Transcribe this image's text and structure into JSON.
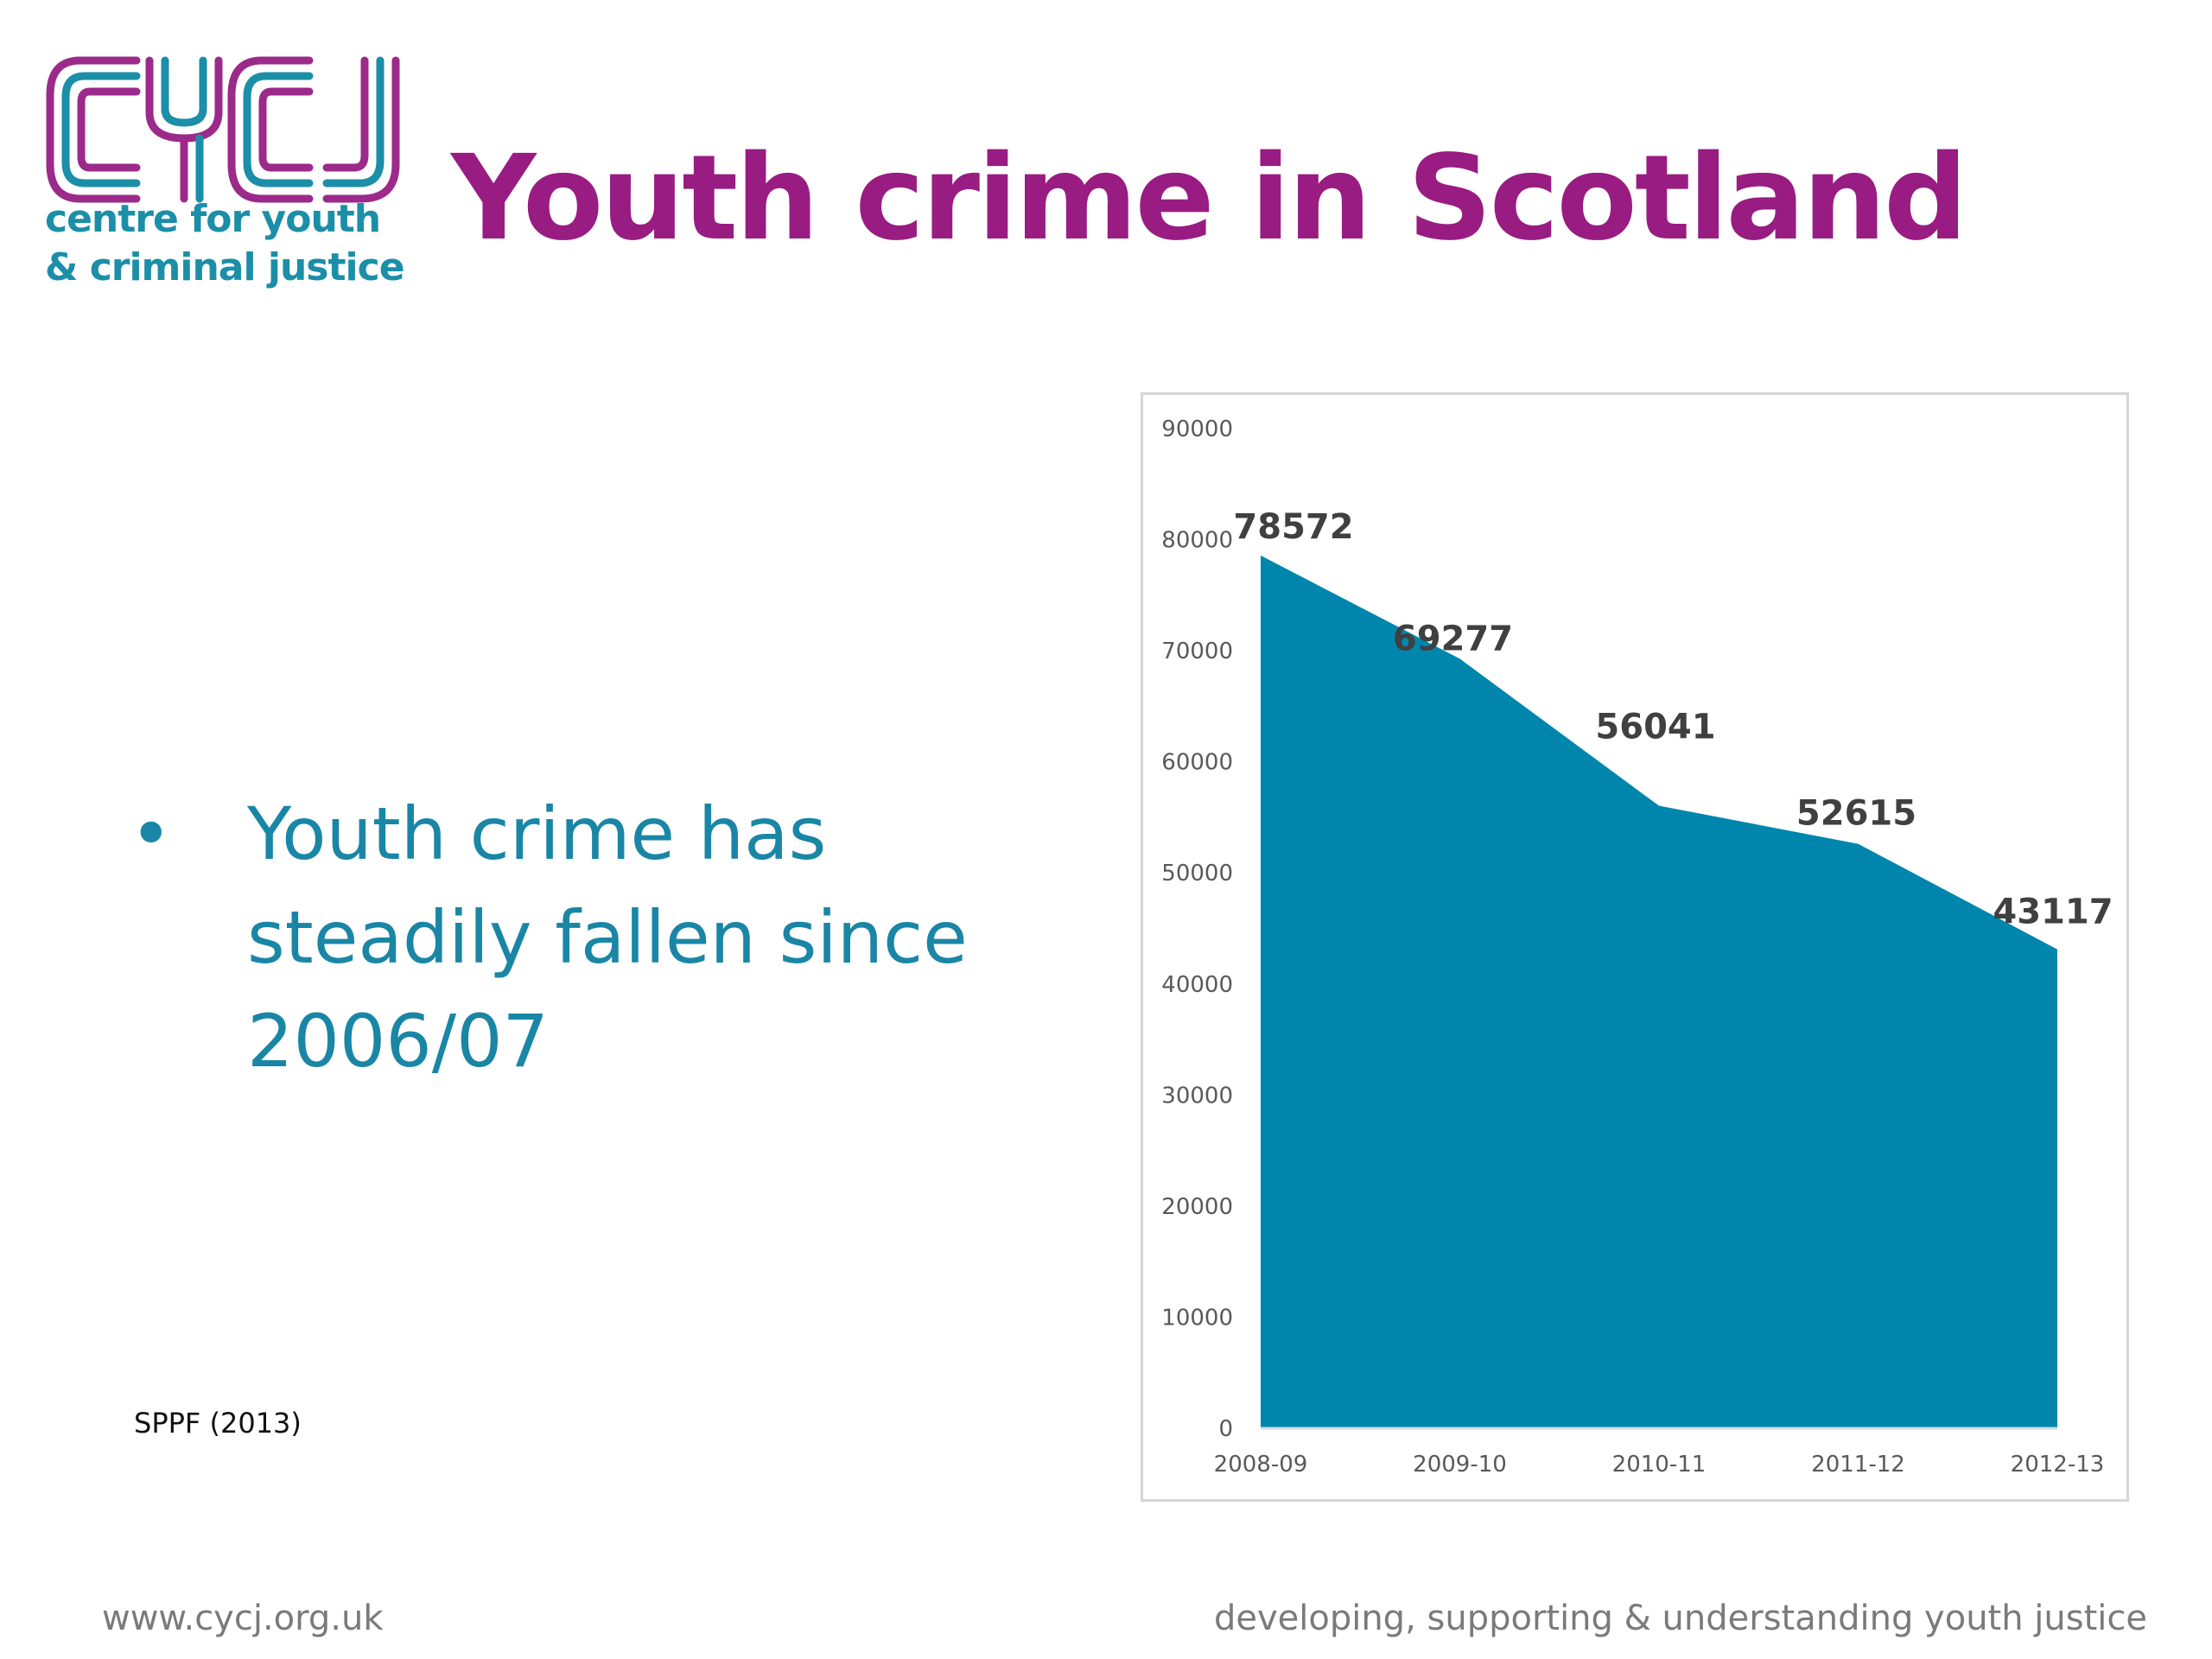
{
  "logo": {
    "wordmark": "CYCJ",
    "line1": "centre for youth",
    "line2": "& criminal justice",
    "colors": {
      "purple": "#9b2a8a",
      "teal": "#1b8ea8"
    }
  },
  "title": "Youth crime in Scotland",
  "bullet": {
    "marker": "•",
    "text": "Youth crime has steadily fallen since 2006/07"
  },
  "source": "SPPF (2013)",
  "footer": {
    "website": "www.cycj.org.uk",
    "tagline": "developing, supporting & understanding youth justice"
  },
  "colors": {
    "title": "#981c82",
    "bullet": "#1a86a6",
    "area_fill": "#0086ad",
    "footer": "#7a7a7a"
  },
  "chart_data": {
    "type": "area",
    "categories": [
      "2008-09",
      "2009-10",
      "2010-11",
      "2011-12",
      "2012-13"
    ],
    "values": [
      78572,
      69277,
      56041,
      52615,
      43117
    ],
    "data_labels": [
      "78572",
      "69277",
      "56041",
      "52615",
      "43117"
    ],
    "y_ticks": [
      "0",
      "10000",
      "20000",
      "30000",
      "40000",
      "50000",
      "60000",
      "70000",
      "80000",
      "90000"
    ],
    "ylim": [
      0,
      90000
    ],
    "title": "",
    "xlabel": "",
    "ylabel": "",
    "grid": false,
    "legend": "none"
  }
}
